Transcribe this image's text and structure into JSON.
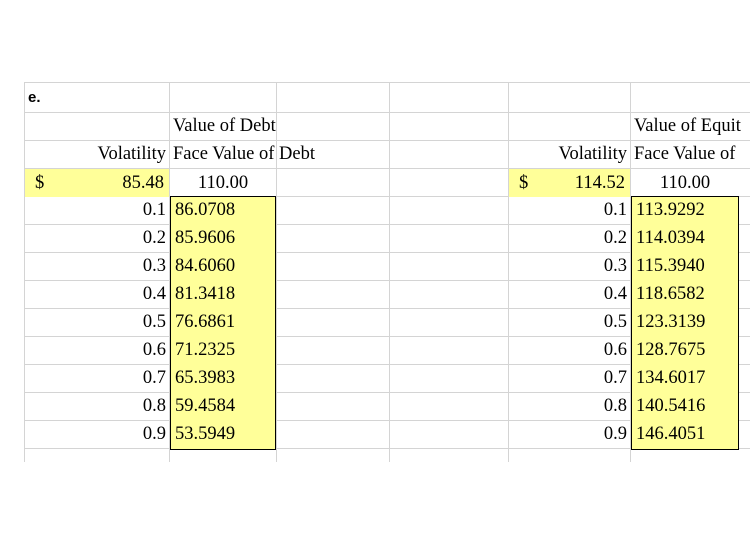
{
  "section_label": "e.",
  "debt": {
    "title": "Value of Debt",
    "col_volatility": "Volatility",
    "col_face": "Face Value of Debt",
    "currency": "$",
    "value": "85.48",
    "face": "110.00",
    "rows": [
      {
        "vol": "0.1",
        "val": "86.0708"
      },
      {
        "vol": "0.2",
        "val": "85.9606"
      },
      {
        "vol": "0.3",
        "val": "84.6060"
      },
      {
        "vol": "0.4",
        "val": "81.3418"
      },
      {
        "vol": "0.5",
        "val": "76.6861"
      },
      {
        "vol": "0.6",
        "val": "71.2325"
      },
      {
        "vol": "0.7",
        "val": "65.3983"
      },
      {
        "vol": "0.8",
        "val": "59.4584"
      },
      {
        "vol": "0.9",
        "val": "53.5949"
      }
    ]
  },
  "equity": {
    "title": "Value of Equit",
    "col_volatility": "Volatility",
    "col_face": "Face Value of",
    "currency": "$",
    "value": "114.52",
    "face": "110.00",
    "rows": [
      {
        "vol": "0.1",
        "val": "113.9292"
      },
      {
        "vol": "0.2",
        "val": "114.0394"
      },
      {
        "vol": "0.3",
        "val": "115.3940"
      },
      {
        "vol": "0.4",
        "val": "118.6582"
      },
      {
        "vol": "0.5",
        "val": "123.3139"
      },
      {
        "vol": "0.6",
        "val": "128.7675"
      },
      {
        "vol": "0.7",
        "val": "134.6017"
      },
      {
        "vol": "0.8",
        "val": "140.5416"
      },
      {
        "vol": "0.9",
        "val": "146.4051"
      }
    ]
  }
}
